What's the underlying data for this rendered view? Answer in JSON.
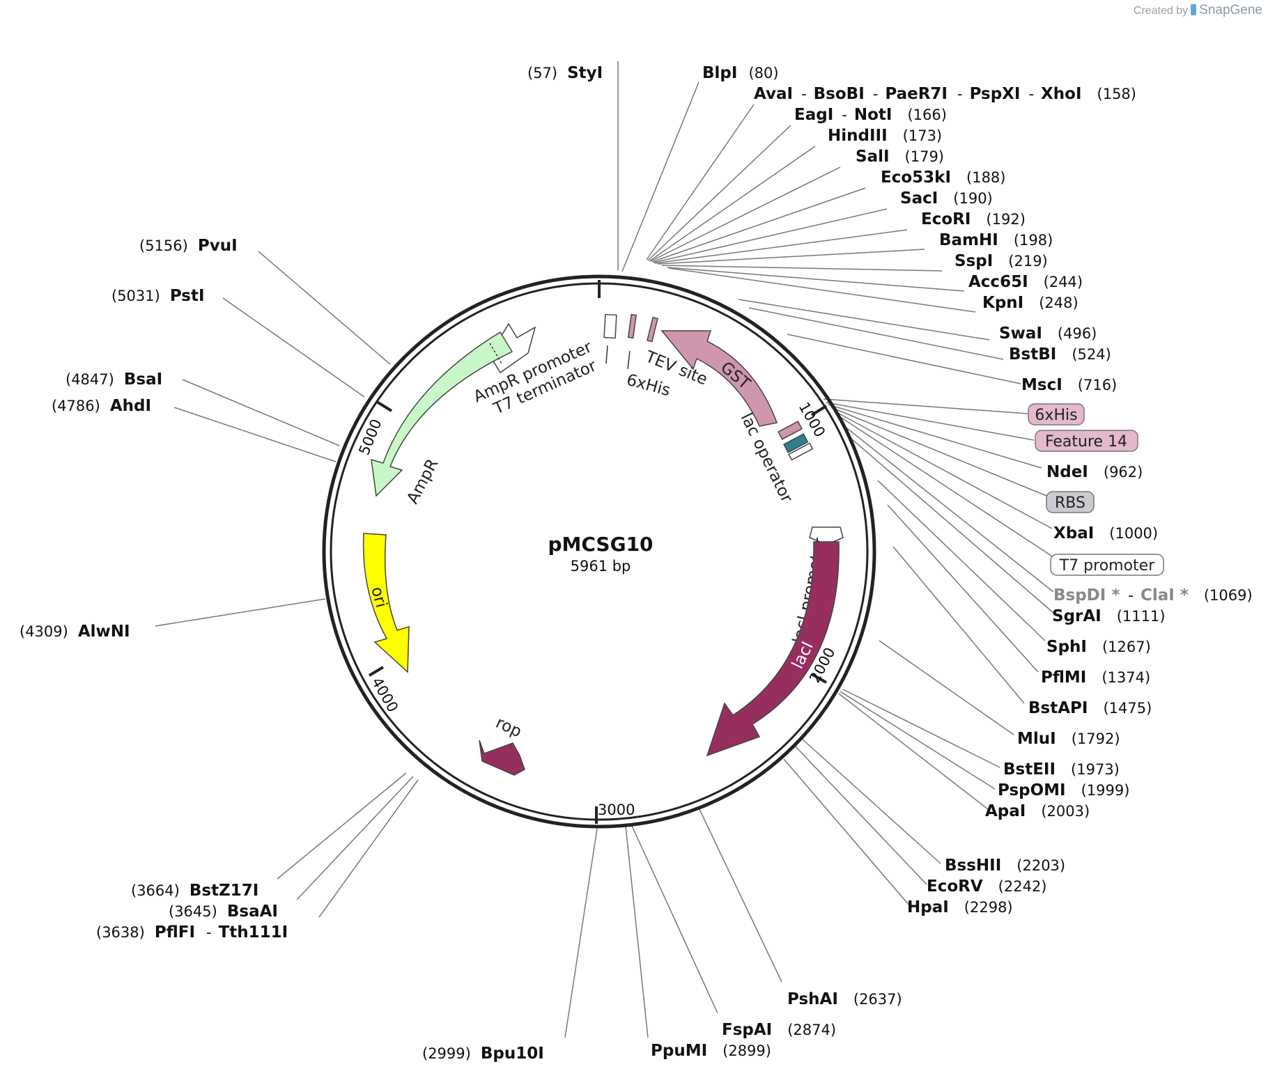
{
  "credit": {
    "prefix": "Created by",
    "brand": "SnapGene"
  },
  "plasmid": {
    "name": "pMCSG10",
    "length": "5961 bp"
  },
  "ticks": [
    "1000",
    "2000",
    "3000",
    "4000",
    "5000"
  ],
  "features": {
    "gst": "GST",
    "tev_site": "TEV site",
    "his6": "6xHis",
    "t7_terminator": "T7 terminator",
    "ampr_promoter": "AmpR promoter",
    "ampr": "AmpR",
    "ori": "ori",
    "rop": "rop",
    "laci": "lacI",
    "laci_promoter": "lacI promoter",
    "lac_operator": "lac operator"
  },
  "colors": {
    "gst": "#cf97ae",
    "laci": "#962e60",
    "rop": "#962e60",
    "ampr": "#c8f7c8",
    "ori": "#ffff00",
    "lac_operator": "#2f7f8f",
    "backbone": "#222222"
  },
  "enzymes": {
    "styi": {
      "name": "StyI",
      "pos": "(57)"
    },
    "blpi": {
      "name": "BlpI",
      "pos": "(80)"
    },
    "avai": {
      "name": "AvaI",
      "sep": "-"
    },
    "bsobi": {
      "name": "BsoBI",
      "sep": "-"
    },
    "paer7i": {
      "name": "PaeR7I",
      "sep": "-"
    },
    "pspxi": {
      "name": "PspXI",
      "sep": "-"
    },
    "xhoi": {
      "name": "XhoI",
      "pos": "(158)"
    },
    "eagi": {
      "name": "EagI",
      "sep": "-"
    },
    "noti": {
      "name": "NotI",
      "pos": "(166)"
    },
    "hindiii": {
      "name": "HindIII",
      "pos": "(173)"
    },
    "sali": {
      "name": "SalI",
      "pos": "(179)"
    },
    "eco53ki": {
      "name": "Eco53kI",
      "pos": "(188)"
    },
    "saci": {
      "name": "SacI",
      "pos": "(190)"
    },
    "ecori": {
      "name": "EcoRI",
      "pos": "(192)"
    },
    "bamhi": {
      "name": "BamHI",
      "pos": "(198)"
    },
    "sspi": {
      "name": "SspI",
      "pos": "(219)"
    },
    "acc65i": {
      "name": "Acc65I",
      "pos": "(244)"
    },
    "kpni": {
      "name": "KpnI",
      "pos": "(248)"
    },
    "swai": {
      "name": "SwaI",
      "pos": "(496)"
    },
    "bstbi": {
      "name": "BstBI",
      "pos": "(524)"
    },
    "msci": {
      "name": "MscI",
      "pos": "(716)"
    },
    "ndei": {
      "name": "NdeI",
      "pos": "(962)"
    },
    "xbai": {
      "name": "XbaI",
      "pos": "(1000)"
    },
    "bspdi": {
      "name": "BspDI *",
      "sep": "-"
    },
    "clai": {
      "name": "ClaI *",
      "pos": "(1069)"
    },
    "sgrai": {
      "name": "SgrAI",
      "pos": "(1111)"
    },
    "sphi": {
      "name": "SphI",
      "pos": "(1267)"
    },
    "pflmi": {
      "name": "PflMI",
      "pos": "(1374)"
    },
    "bstapi": {
      "name": "BstAPI",
      "pos": "(1475)"
    },
    "mlui": {
      "name": "MluI",
      "pos": "(1792)"
    },
    "bsteii": {
      "name": "BstEII",
      "pos": "(1973)"
    },
    "pspomi": {
      "name": "PspOMI",
      "pos": "(1999)"
    },
    "apai": {
      "name": "ApaI",
      "pos": "(2003)"
    },
    "bsshii": {
      "name": "BssHII",
      "pos": "(2203)"
    },
    "ecorv": {
      "name": "EcoRV",
      "pos": "(2242)"
    },
    "hpai": {
      "name": "HpaI",
      "pos": "(2298)"
    },
    "pshai": {
      "name": "PshAI",
      "pos": "(2637)"
    },
    "fspai": {
      "name": "FspAI",
      "pos": "(2874)"
    },
    "ppumi": {
      "name": "PpuMI",
      "pos": "(2899)"
    },
    "bpu10i": {
      "name": "Bpu10I",
      "pos": "(2999)"
    },
    "bstz17i": {
      "name": "BstZ17I",
      "pos": "(3664)"
    },
    "bsaai": {
      "name": "BsaAI",
      "pos": "(3645)"
    },
    "pflfi": {
      "name": "PflFI",
      "pos": "(3638)",
      "sep": "-"
    },
    "tth111i": {
      "name": "Tth111I"
    },
    "alwni": {
      "name": "AlwNI",
      "pos": "(4309)"
    },
    "ahdi": {
      "name": "AhdI",
      "pos": "(4786)"
    },
    "bsai": {
      "name": "BsaI",
      "pos": "(4847)"
    },
    "psti": {
      "name": "PstI",
      "pos": "(5031)"
    },
    "pvui": {
      "name": "PvuI",
      "pos": "(5156)"
    }
  },
  "badges": {
    "his6": "6xHis",
    "feature14": "Feature 14",
    "rbs": "RBS",
    "t7_promoter": "T7 promoter"
  }
}
